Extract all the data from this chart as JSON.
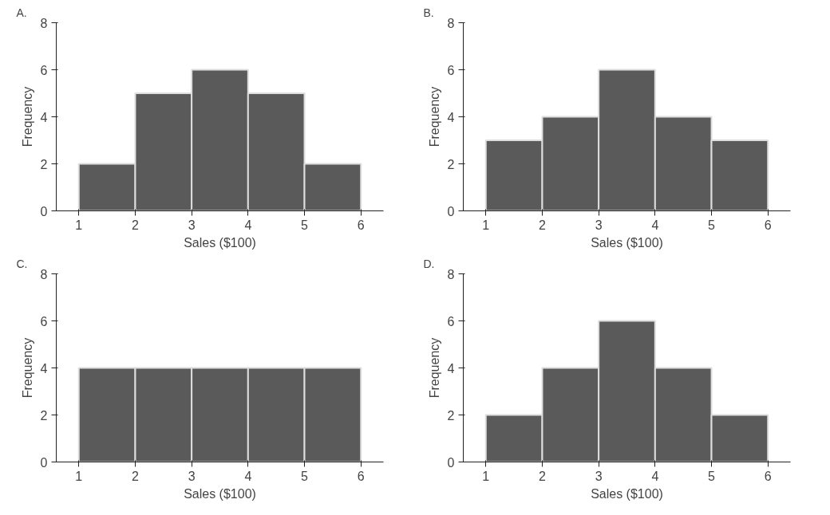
{
  "chart_data": [
    {
      "type": "histogram",
      "title": "A.",
      "xlabel": "Sales ($100)",
      "ylabel": "Frequency",
      "bins": [
        1,
        2,
        3,
        4,
        5,
        6
      ],
      "values": [
        2,
        5,
        6,
        5,
        2
      ],
      "color": "#5a5a5a",
      "xlim": [
        0.6,
        6.4
      ],
      "ylim": [
        0,
        8
      ],
      "xticks": [
        1,
        2,
        3,
        4,
        5,
        6
      ],
      "yticks": [
        0,
        2,
        4,
        6,
        8
      ]
    },
    {
      "type": "histogram",
      "title": "B.",
      "xlabel": "Sales ($100)",
      "ylabel": "Frequency",
      "bins": [
        1,
        2,
        3,
        4,
        5,
        6
      ],
      "values": [
        3,
        4,
        6,
        4,
        3
      ],
      "color": "#5a5a5a",
      "xlim": [
        0.6,
        6.4
      ],
      "ylim": [
        0,
        8
      ],
      "xticks": [
        1,
        2,
        3,
        4,
        5,
        6
      ],
      "yticks": [
        0,
        2,
        4,
        6,
        8
      ]
    },
    {
      "type": "histogram",
      "title": "C.",
      "xlabel": "Sales ($100)",
      "ylabel": "Frequency",
      "bins": [
        1,
        2,
        3,
        4,
        5,
        6
      ],
      "values": [
        4,
        4,
        4,
        4,
        4
      ],
      "color": "#5a5a5a",
      "xlim": [
        0.6,
        6.4
      ],
      "ylim": [
        0,
        8
      ],
      "xticks": [
        1,
        2,
        3,
        4,
        5,
        6
      ],
      "yticks": [
        0,
        2,
        4,
        6,
        8
      ]
    },
    {
      "type": "histogram",
      "title": "D.",
      "xlabel": "Sales ($100)",
      "ylabel": "Frequency",
      "bins": [
        1,
        2,
        3,
        4,
        5,
        6
      ],
      "values": [
        2,
        4,
        6,
        4,
        2
      ],
      "color": "#5a5a5a",
      "xlim": [
        0.6,
        6.4
      ],
      "ylim": [
        0,
        8
      ],
      "xticks": [
        1,
        2,
        3,
        4,
        5,
        6
      ],
      "yticks": [
        0,
        2,
        4,
        6,
        8
      ]
    }
  ]
}
